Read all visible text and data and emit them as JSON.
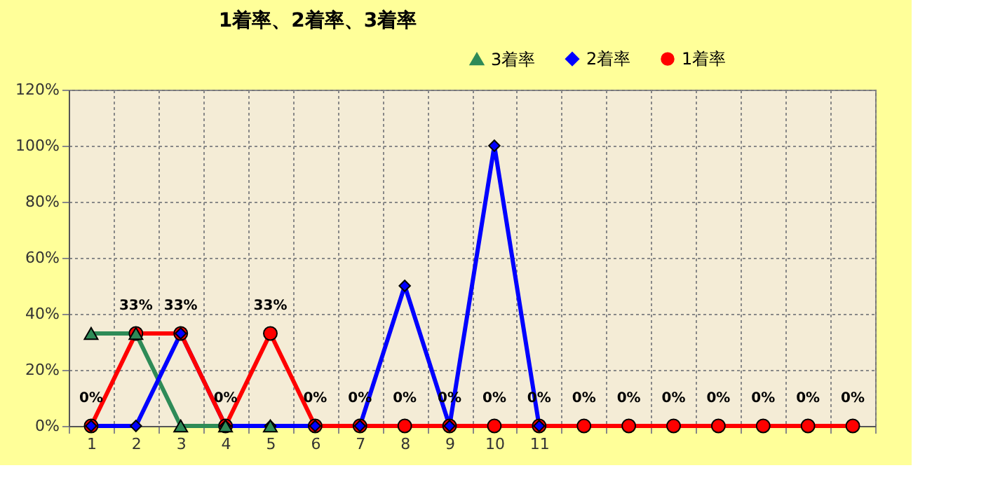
{
  "chart_data": {
    "type": "line",
    "title": "1着率、2着率、3着率",
    "categories": [
      "1",
      "2",
      "3",
      "4",
      "5",
      "6",
      "7",
      "8",
      "9",
      "10",
      "11",
      null,
      null,
      null,
      null,
      null,
      null,
      null
    ],
    "series": [
      {
        "name": "3着率",
        "color": "#2e8b57",
        "marker": "triangle",
        "values": [
          33,
          33,
          0,
          0,
          0,
          null,
          null,
          null,
          null,
          null,
          null,
          null,
          null,
          null,
          null,
          null,
          null,
          null
        ]
      },
      {
        "name": "2着率",
        "color": "#0000ff",
        "marker": "diamond",
        "values": [
          0,
          0,
          33,
          0,
          0,
          0,
          0,
          50,
          0,
          100,
          0,
          null,
          null,
          null,
          null,
          null,
          null,
          null
        ]
      },
      {
        "name": "1着率",
        "color": "#ff0000",
        "marker": "circle",
        "values": [
          0,
          33,
          33,
          0,
          33,
          0,
          0,
          0,
          0,
          0,
          0,
          0,
          0,
          0,
          0,
          0,
          0,
          0
        ],
        "value_labels": [
          "0%",
          "33%",
          "33%",
          "0%",
          "33%",
          "0%",
          "0%",
          "0%",
          "0%",
          "0%",
          "0%",
          "0%",
          "0%",
          "0%",
          "0%",
          "0%",
          "0%",
          "0%"
        ]
      }
    ],
    "ylim": [
      0,
      120
    ],
    "yticks": [
      {
        "value": 0,
        "label": "0%"
      },
      {
        "value": 20,
        "label": "20%"
      },
      {
        "value": 40,
        "label": "40%"
      },
      {
        "value": 60,
        "label": "60%"
      },
      {
        "value": 80,
        "label": "80%"
      },
      {
        "value": 100,
        "label": "100%"
      },
      {
        "value": 120,
        "label": "120%"
      }
    ],
    "grid": true,
    "legend": "top right",
    "line_style": "solid"
  }
}
